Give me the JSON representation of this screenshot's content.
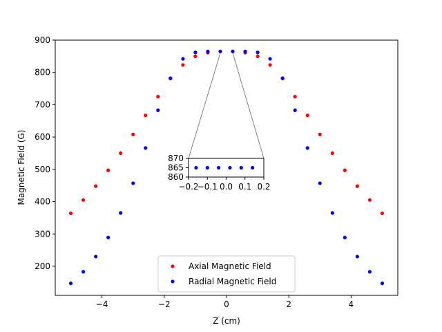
{
  "chart_data": {
    "type": "scatter",
    "title": "",
    "xlabel": "Z (cm)",
    "ylabel": "Magnetic Field (G)",
    "xlim": [
      -5.5,
      5.5
    ],
    "ylim": [
      110,
      900
    ],
    "xticks": [
      -4,
      -2,
      0,
      2,
      4
    ],
    "xtick_labels": [
      "−4",
      "−2",
      "0",
      "2",
      "4"
    ],
    "yticks": [
      200,
      300,
      400,
      500,
      600,
      700,
      800,
      900
    ],
    "ytick_labels": [
      "200",
      "300",
      "400",
      "500",
      "600",
      "700",
      "800",
      "900"
    ],
    "grid": false,
    "legend_position": "lower center",
    "series": [
      {
        "name": "Axial Magnetic Field",
        "color": "#ff0000",
        "x": [
          -5.0,
          -4.6,
          -4.2,
          -3.8,
          -3.4,
          -3.0,
          -2.6,
          -2.2,
          -1.8,
          -1.4,
          -1.0,
          -0.6,
          -0.2,
          0.2,
          0.6,
          1.0,
          1.4,
          1.8,
          2.2,
          2.6,
          3.0,
          3.4,
          3.8,
          4.2,
          4.6,
          5.0
        ],
        "values": [
          364,
          405,
          448,
          497,
          550,
          608,
          667,
          725,
          781,
          823,
          850,
          861,
          865,
          865,
          861,
          850,
          823,
          781,
          725,
          667,
          608,
          550,
          497,
          448,
          405,
          364
        ]
      },
      {
        "name": "Radial Magnetic Field",
        "color": "#0000ff",
        "x": [
          -5.0,
          -4.6,
          -4.2,
          -3.8,
          -3.4,
          -3.0,
          -2.6,
          -2.2,
          -1.8,
          -1.4,
          -1.0,
          -0.6,
          -0.2,
          0.2,
          0.6,
          1.0,
          1.4,
          1.8,
          2.2,
          2.6,
          3.0,
          3.4,
          3.8,
          4.2,
          4.6,
          5.0
        ],
        "values": [
          147,
          183,
          230,
          289,
          365,
          457,
          566,
          683,
          782,
          842,
          862,
          865,
          865,
          865,
          865,
          862,
          842,
          782,
          683,
          566,
          457,
          365,
          289,
          230,
          183,
          147
        ]
      }
    ],
    "inset": {
      "xlim": [
        -0.2,
        0.2
      ],
      "ylim": [
        860,
        870
      ],
      "xticks": [
        -0.2,
        -0.1,
        0.0,
        0.1,
        0.2
      ],
      "xtick_labels": [
        "−0.2",
        "−0.1",
        "0.0",
        "0.1",
        "0.2"
      ],
      "yticks": [
        860,
        865,
        870
      ],
      "ytick_labels": [
        "860",
        "865",
        "870"
      ],
      "series_name": "Radial Magnetic Field",
      "x": [
        -0.16,
        -0.1,
        -0.04,
        0.02,
        0.08,
        0.14
      ],
      "values": [
        865,
        865,
        865,
        865,
        865,
        865
      ]
    }
  }
}
